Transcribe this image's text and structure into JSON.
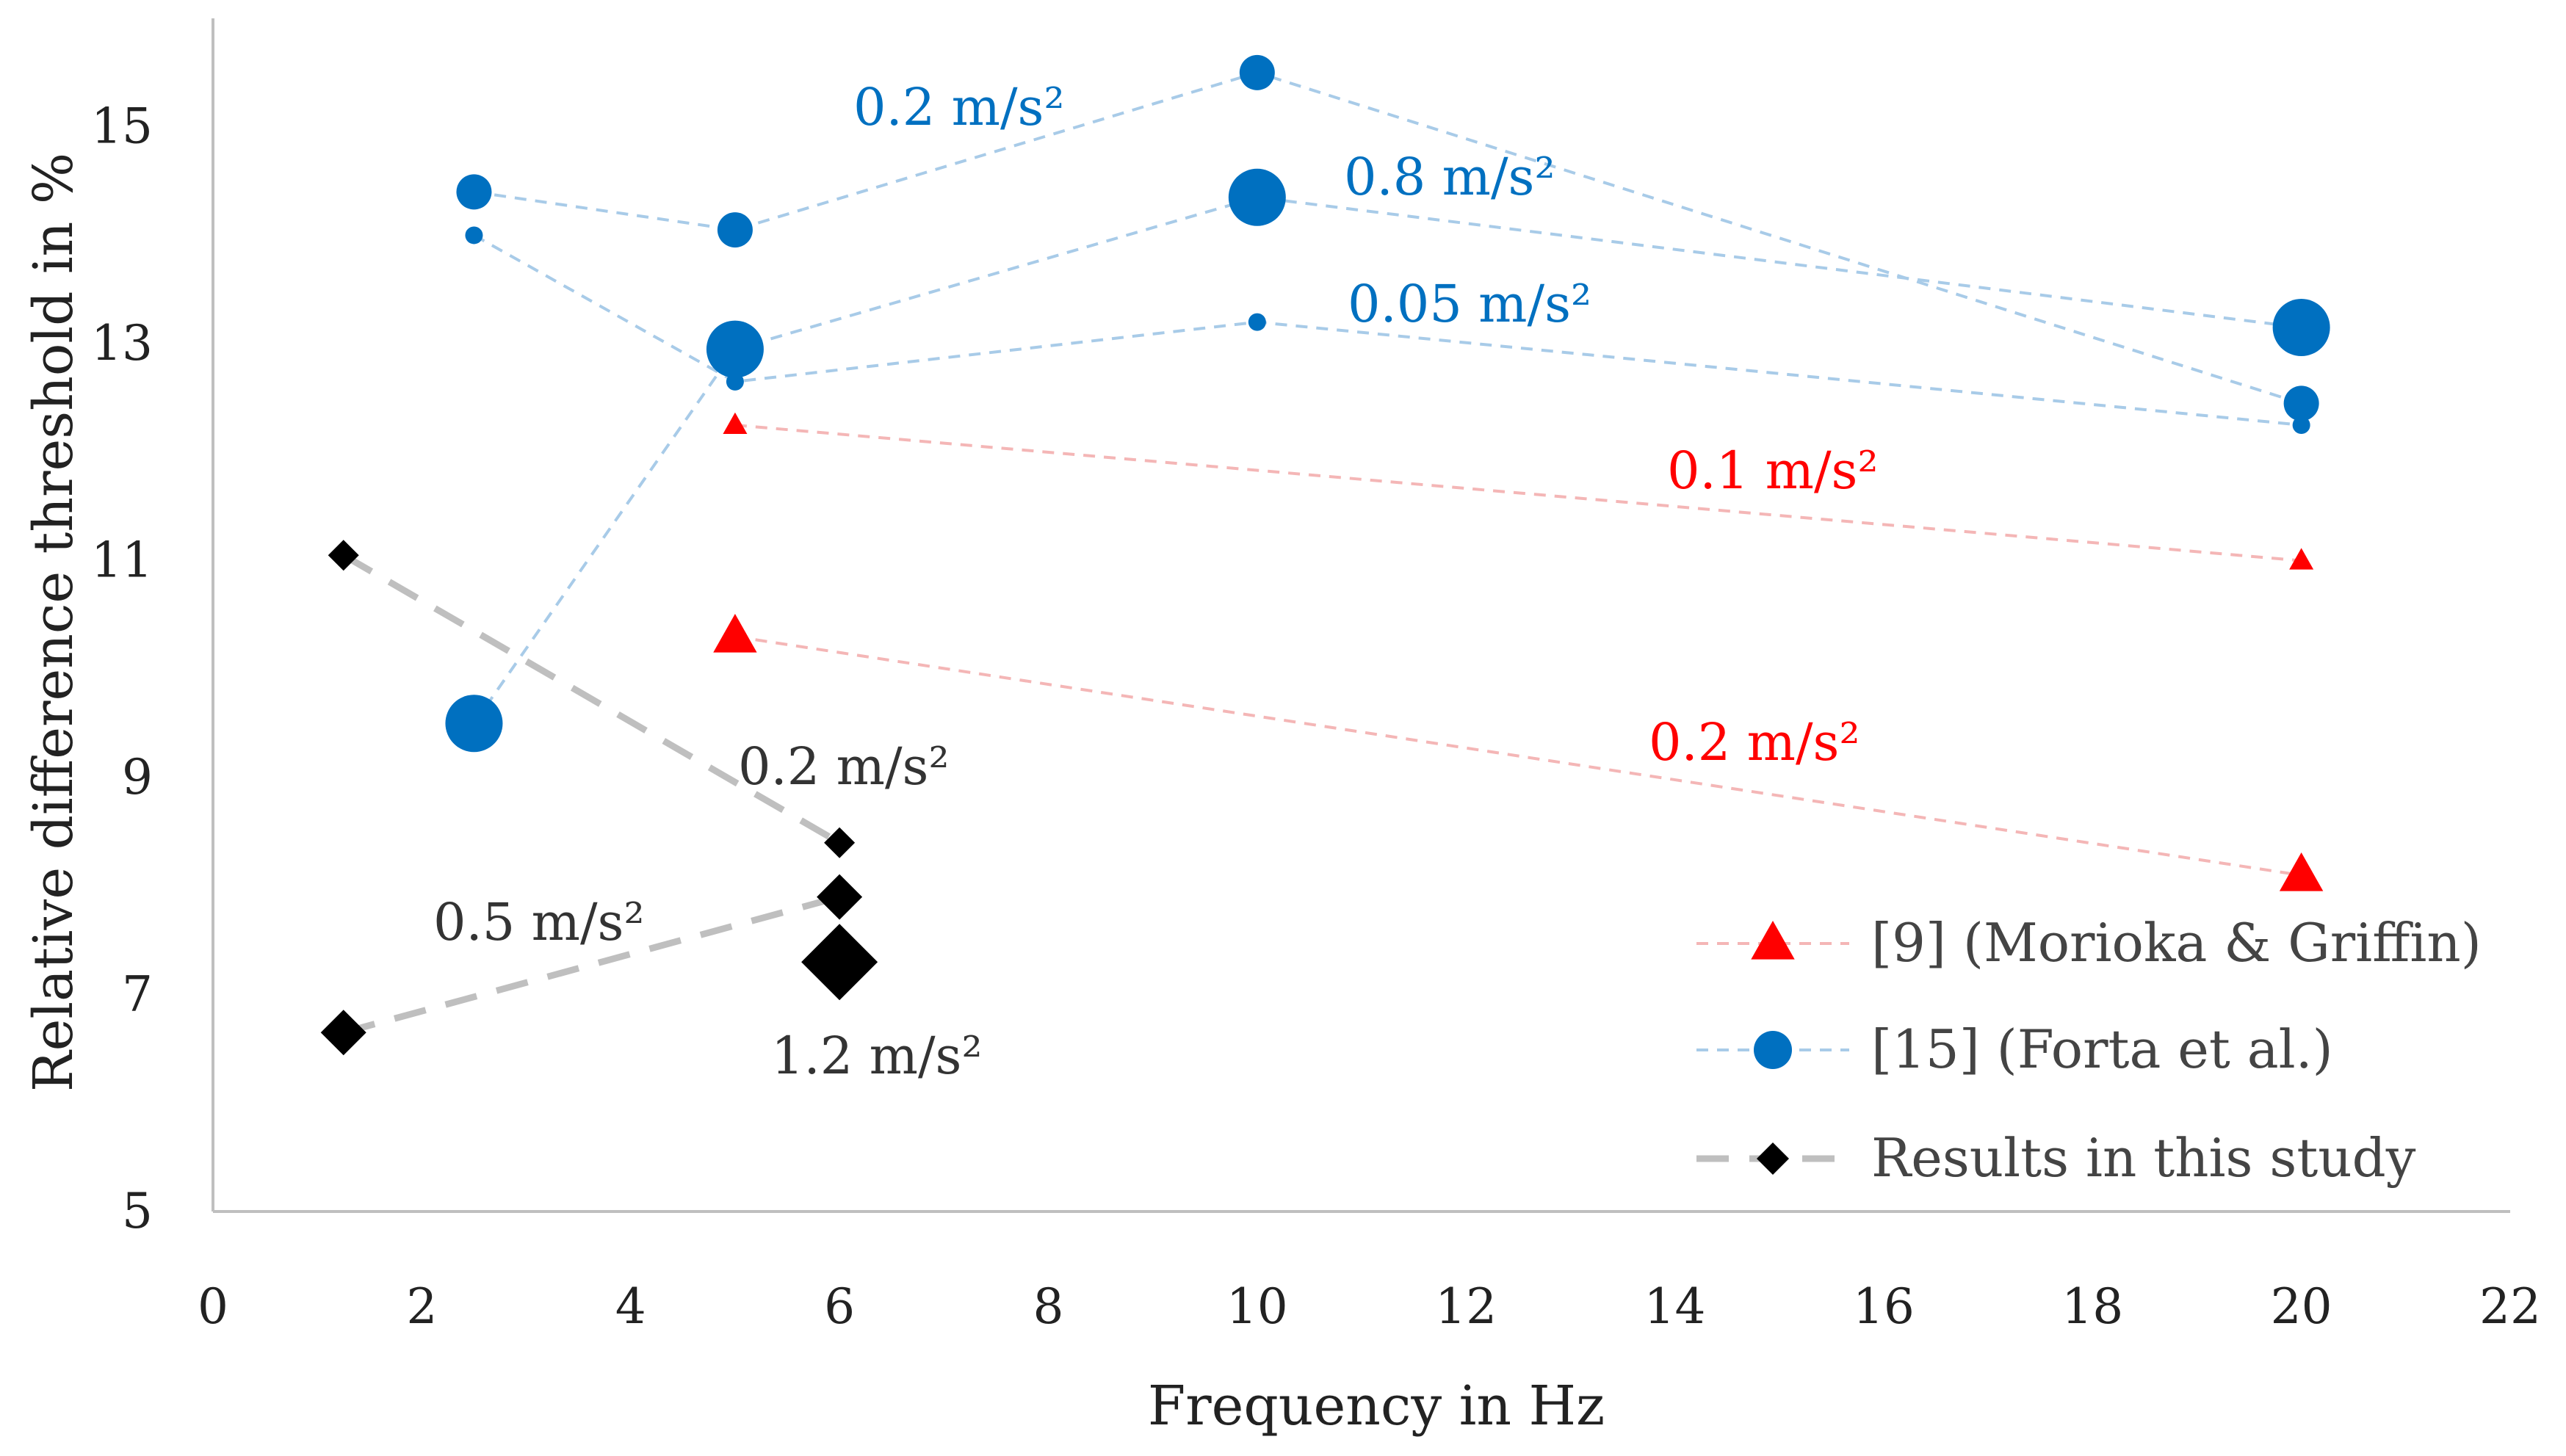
{
  "chart_data": {
    "type": "scatter",
    "title": "",
    "xlabel": "Frequency in Hz",
    "ylabel": "Relative difference threshold in %",
    "xlim": [
      0,
      22
    ],
    "ylim": [
      5,
      16
    ],
    "xticks": [
      "0",
      "2",
      "4",
      "6",
      "8",
      "10",
      "12",
      "14",
      "16",
      "18",
      "20",
      "22"
    ],
    "yticks": [
      "5",
      "7",
      "9",
      "11",
      "13",
      "15"
    ],
    "grid": false,
    "legend_position": "bottom-right",
    "colors": {
      "morioka": "#ff0000",
      "morioka_line": "#f4b6b6",
      "forta": "#0070c0",
      "forta_line": "#a8cbe8",
      "study": "#000000",
      "study_line": "#bfbfbf"
    },
    "series": [
      {
        "name": "[9] (Morioka & Griffin)",
        "group": "morioka",
        "marker": "triangle",
        "curves": [
          {
            "label": "0.1 m/s²",
            "size": "small",
            "x": [
              5,
              20
            ],
            "y": [
              12.25,
              11.0
            ]
          },
          {
            "label": "0.2 m/s²",
            "size": "large",
            "x": [
              5,
              20
            ],
            "y": [
              10.3,
              8.1
            ]
          }
        ]
      },
      {
        "name": "[15] (Forta et al.)",
        "group": "forta",
        "marker": "circle",
        "curves": [
          {
            "label": "0.05 m/s²",
            "size": "xsmall",
            "x": [
              2.5,
              5,
              10,
              20
            ],
            "y": [
              14.0,
              12.65,
              13.2,
              12.25
            ]
          },
          {
            "label": "0.2 m/s²",
            "size": "medium",
            "x": [
              2.5,
              5,
              10,
              20
            ],
            "y": [
              14.4,
              14.05,
              15.5,
              12.45
            ]
          },
          {
            "label": "0.8 m/s²",
            "size": "large",
            "x": [
              2.5,
              5,
              10,
              20
            ],
            "y": [
              9.5,
              12.95,
              14.35,
              13.15
            ]
          }
        ]
      },
      {
        "name": "Results in this study",
        "group": "study",
        "marker": "diamond",
        "curves": [
          {
            "label": "0.2 m/s²",
            "size": "small",
            "x": [
              1.25,
              6
            ],
            "y": [
              11.05,
              8.4
            ]
          },
          {
            "label": "0.5 m/s²",
            "size": "medium",
            "x": [
              1.25,
              6
            ],
            "y": [
              6.65,
              7.9
            ]
          },
          {
            "label": "1.2 m/s²",
            "size": "large",
            "x": [
              6
            ],
            "y": [
              7.3
            ]
          }
        ]
      }
    ]
  }
}
